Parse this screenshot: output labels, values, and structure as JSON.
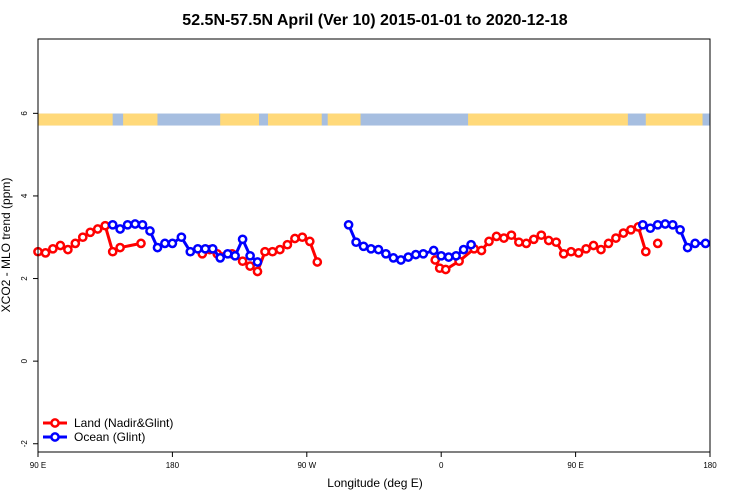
{
  "chart_data": {
    "type": "line",
    "title": "52.5N-57.5N April (Ver 10)   2015-01-01 to 2020-12-18",
    "xlabel": "Longitude (deg E)",
    "ylabel": "XCO2 - MLO trend (ppm)",
    "xlim": [
      90,
      540
    ],
    "ylim": [
      -2.2,
      7.8
    ],
    "x_ticks": [
      {
        "value": 90,
        "label": "90 E"
      },
      {
        "value": 180,
        "label": "180"
      },
      {
        "value": 270,
        "label": "90 W"
      },
      {
        "value": 360,
        "label": "0"
      },
      {
        "value": 450,
        "label": "90 E"
      },
      {
        "value": 540,
        "label": "180"
      }
    ],
    "y_ticks": [
      {
        "value": -2,
        "label": "-2"
      },
      {
        "value": 0,
        "label": "0"
      },
      {
        "value": 2,
        "label": "2"
      },
      {
        "value": 4,
        "label": "4"
      },
      {
        "value": 6,
        "label": "6"
      }
    ],
    "legend_position": "bottom-left",
    "land_sea_strip": {
      "y_center": 5.85,
      "land_color": "#FFD97A",
      "ocean_color": "#A6BEE0",
      "land_ranges": [
        [
          90,
          140
        ],
        [
          147,
          170
        ],
        [
          212,
          238
        ],
        [
          244,
          280
        ],
        [
          284,
          306
        ],
        [
          378,
          485
        ],
        [
          497,
          535
        ]
      ]
    },
    "series": [
      {
        "name": "Land (Nadir&Glint)",
        "color": "#FF0000",
        "segments": [
          [
            [
              90,
              2.65
            ],
            [
              95,
              2.62
            ],
            [
              100,
              2.72
            ],
            [
              105,
              2.8
            ],
            [
              110,
              2.7
            ],
            [
              115,
              2.85
            ],
            [
              120,
              3.0
            ],
            [
              125,
              3.12
            ],
            [
              130,
              3.2
            ],
            [
              135,
              3.28
            ],
            [
              140,
              2.65
            ],
            [
              145,
              2.75
            ],
            [
              159,
              2.85
            ]
          ],
          [
            [
              200,
              2.6
            ],
            [
              205,
              2.7
            ],
            [
              210,
              2.6
            ],
            [
              220,
              2.6
            ],
            [
              227,
              2.42
            ],
            [
              232,
              2.3
            ],
            [
              237,
              2.17
            ],
            [
              242,
              2.65
            ],
            [
              247,
              2.65
            ],
            [
              252,
              2.7
            ],
            [
              257,
              2.82
            ],
            [
              262,
              2.97
            ],
            [
              267,
              3.0
            ],
            [
              272,
              2.9
            ],
            [
              277,
              2.4
            ]
          ],
          [
            [
              356,
              2.45
            ],
            [
              359,
              2.25
            ],
            [
              363,
              2.22
            ],
            [
              372,
              2.42
            ],
            [
              382,
              2.72
            ],
            [
              387,
              2.68
            ],
            [
              392,
              2.9
            ],
            [
              397,
              3.02
            ],
            [
              402,
              2.98
            ],
            [
              407,
              3.05
            ],
            [
              412,
              2.88
            ],
            [
              417,
              2.85
            ],
            [
              422,
              2.95
            ],
            [
              427,
              3.05
            ],
            [
              432,
              2.92
            ],
            [
              437,
              2.88
            ],
            [
              442,
              2.6
            ],
            [
              447,
              2.65
            ],
            [
              452,
              2.62
            ],
            [
              457,
              2.72
            ],
            [
              462,
              2.8
            ],
            [
              467,
              2.7
            ],
            [
              472,
              2.85
            ],
            [
              477,
              2.98
            ],
            [
              482,
              3.1
            ],
            [
              487,
              3.18
            ],
            [
              492,
              3.25
            ],
            [
              497,
              2.65
            ]
          ],
          [
            [
              505,
              2.85
            ]
          ]
        ]
      },
      {
        "name": "Ocean (Glint)",
        "color": "#0000FF",
        "segments": [
          [
            [
              140,
              3.3
            ],
            [
              145,
              3.2
            ],
            [
              150,
              3.3
            ],
            [
              155,
              3.32
            ],
            [
              160,
              3.3
            ],
            [
              165,
              3.15
            ],
            [
              170,
              2.75
            ],
            [
              175,
              2.85
            ],
            [
              180,
              2.85
            ],
            [
              186,
              3.0
            ],
            [
              192,
              2.65
            ],
            [
              197,
              2.72
            ],
            [
              202,
              2.72
            ],
            [
              207,
              2.72
            ],
            [
              212,
              2.5
            ],
            [
              217,
              2.6
            ],
            [
              222,
              2.55
            ],
            [
              227,
              2.95
            ],
            [
              232,
              2.55
            ],
            [
              237,
              2.4
            ]
          ],
          [
            [
              298,
              3.3
            ],
            [
              303,
              2.88
            ],
            [
              308,
              2.78
            ],
            [
              313,
              2.72
            ],
            [
              318,
              2.7
            ],
            [
              323,
              2.6
            ],
            [
              328,
              2.5
            ],
            [
              333,
              2.45
            ],
            [
              338,
              2.52
            ],
            [
              343,
              2.58
            ],
            [
              348,
              2.6
            ],
            [
              355,
              2.68
            ],
            [
              360,
              2.55
            ],
            [
              365,
              2.52
            ],
            [
              370,
              2.55
            ],
            [
              375,
              2.7
            ],
            [
              380,
              2.82
            ]
          ],
          [
            [
              495,
              3.3
            ],
            [
              500,
              3.22
            ],
            [
              505,
              3.3
            ],
            [
              510,
              3.32
            ],
            [
              515,
              3.3
            ],
            [
              520,
              3.18
            ],
            [
              525,
              2.75
            ],
            [
              530,
              2.85
            ],
            [
              537,
              2.85
            ]
          ]
        ]
      }
    ]
  }
}
